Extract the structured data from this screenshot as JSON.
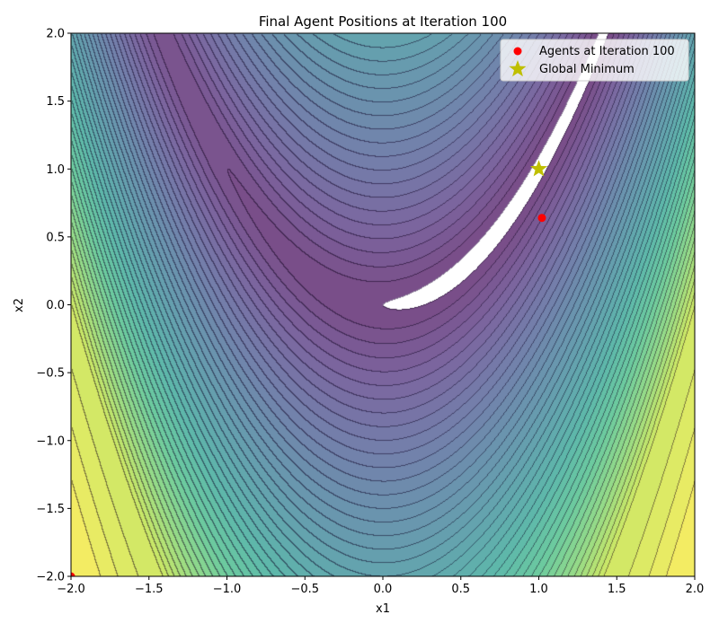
{
  "chart_data": {
    "type": "scatter",
    "title": "Final Agent Positions at Iteration 100",
    "xlabel": "x1",
    "ylabel": "x2",
    "xlim": [
      -2,
      2
    ],
    "ylim": [
      -2,
      2
    ],
    "x_ticks": [
      -2.0,
      -1.5,
      -1.0,
      -0.5,
      0.0,
      0.5,
      1.0,
      1.5,
      2.0
    ],
    "y_ticks": [
      -2.0,
      -1.5,
      -1.0,
      -0.5,
      0.0,
      0.5,
      1.0,
      1.5,
      2.0
    ],
    "x_tick_labels": [
      "−2.0",
      "−1.5",
      "−1.0",
      "−0.5",
      "0.0",
      "0.5",
      "1.0",
      "1.5",
      "2.0"
    ],
    "y_tick_labels": [
      "−2.0",
      "−1.5",
      "−1.0",
      "−0.5",
      "0.0",
      "0.5",
      "1.0",
      "1.5",
      "2.0"
    ],
    "grid": false,
    "background": "filled contour plot of the Rosenbrock function (viridis colormap, alpha-blended)",
    "legend": {
      "placement": "top-right",
      "entries": [
        {
          "label": "Agents at Iteration 100",
          "marker": "circle",
          "color": "#ff0000"
        },
        {
          "label": "Global Minimum",
          "marker": "star",
          "color": "#bfbf00"
        }
      ]
    },
    "series": [
      {
        "name": "Agents at Iteration 100",
        "marker": "circle",
        "color": "#ff0000",
        "points": [
          {
            "x": 1.02,
            "y": 0.64
          },
          {
            "x": -2.0,
            "y": -2.0
          }
        ]
      },
      {
        "name": "Global Minimum",
        "marker": "star",
        "color": "#bfbf00",
        "points": [
          {
            "x": 1.0,
            "y": 1.0
          }
        ]
      }
    ]
  }
}
